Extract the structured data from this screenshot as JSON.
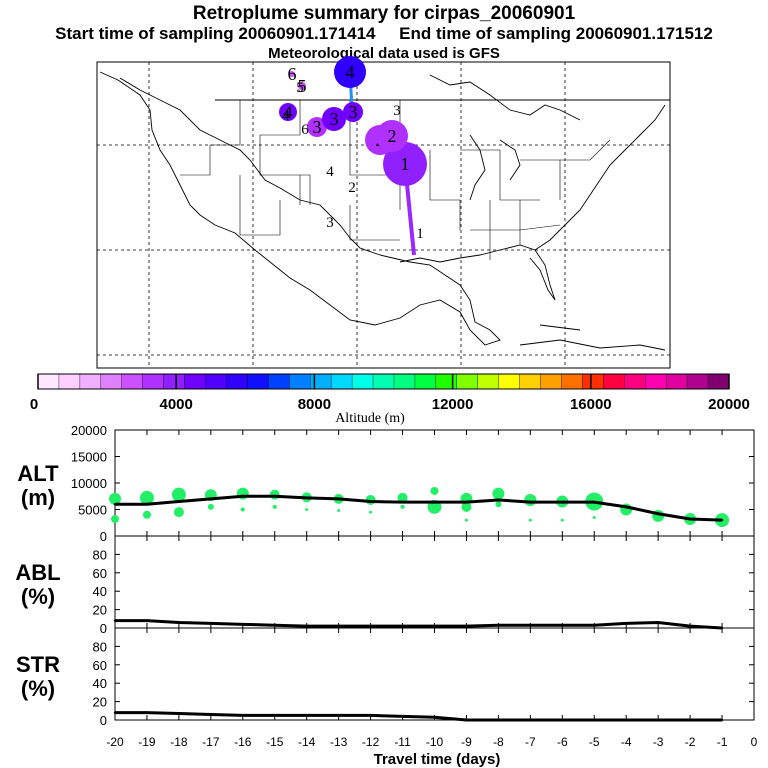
{
  "header": {
    "title": "Retroplume summary for cirpas_20060901",
    "start": "Start time of sampling 20060901.171414",
    "end": "End time of sampling 20060901.171512",
    "met": "Meteorological data used is GFS"
  },
  "map": {
    "plume_points": [
      {
        "label": "1",
        "size": 22,
        "altitude": 4200
      },
      {
        "label": "2",
        "size": 15,
        "altitude": 3600
      },
      {
        "label": "2",
        "size": 16,
        "altitude": 3300
      },
      {
        "label": "3",
        "size": 10,
        "altitude": 3300
      },
      {
        "label": "3",
        "size": 12,
        "altitude": 4400
      },
      {
        "label": "3",
        "size": 10,
        "altitude": 4700
      },
      {
        "label": "4",
        "size": 16,
        "altitude": 6000
      },
      {
        "label": "4",
        "size": 9,
        "altitude": 4500
      },
      {
        "label": "5",
        "size": 4,
        "altitude": 3000
      },
      {
        "label": "6",
        "size": 3,
        "altitude": 3000
      }
    ],
    "labels": [
      "1",
      "2",
      "3",
      "4",
      "2",
      "3",
      "4",
      "4",
      "5",
      "6"
    ]
  },
  "colorbar": {
    "title": "Altitude (m)",
    "min": 0,
    "max": 20000,
    "ticks": [
      "0",
      "4000",
      "8000",
      "12000",
      "16000",
      "20000"
    ],
    "colors": [
      "#ffe8ff",
      "#ffd0ff",
      "#f0b0ff",
      "#e080ff",
      "#cc50ff",
      "#b030ff",
      "#9020ff",
      "#7000ff",
      "#5000ff",
      "#3000ff",
      "#1010ff",
      "#0040ff",
      "#0080ff",
      "#00b0ff",
      "#00d8ff",
      "#00ffe8",
      "#00ffb0",
      "#00ff80",
      "#00ff40",
      "#20ff00",
      "#80ff00",
      "#c0ff00",
      "#ffff00",
      "#ffd000",
      "#ffa000",
      "#ff7000",
      "#ff3000",
      "#ff0040",
      "#ff0080",
      "#ff00b0",
      "#e000a0",
      "#b00090",
      "#800070"
    ]
  },
  "chart_data": {
    "type": "line",
    "x": [
      -20,
      -19,
      -18,
      -17,
      -16,
      -15,
      -14,
      -13,
      -12,
      -11,
      -10,
      -9,
      -8,
      -7,
      -6,
      -5,
      -4,
      -3,
      -2,
      -1
    ],
    "xlabel": "Travel time (days)",
    "xticks": [
      "-20",
      "-19",
      "-18",
      "-17",
      "-16",
      "-15",
      "-14",
      "-13",
      "-12",
      "-11",
      "-10",
      "-9",
      "-8",
      "-7",
      "-6",
      "-5",
      "-4",
      "-3",
      "-2",
      "-1",
      "0"
    ],
    "panels": [
      {
        "name": "ALT",
        "unit": "(m)",
        "ylim": [
          0,
          20000
        ],
        "yticks": [
          "0",
          "5000",
          "10000",
          "15000",
          "20000"
        ],
        "values": [
          6000,
          6000,
          6500,
          7000,
          7500,
          7500,
          7200,
          7000,
          6500,
          6400,
          6400,
          6400,
          6800,
          6400,
          6400,
          6400,
          5500,
          4200,
          3200,
          3000
        ],
        "scatter": [
          {
            "x": -20,
            "y": 7000,
            "r": 6
          },
          {
            "x": -20,
            "y": 3200,
            "r": 4
          },
          {
            "x": -19,
            "y": 7200,
            "r": 7
          },
          {
            "x": -19,
            "y": 4000,
            "r": 4
          },
          {
            "x": -18,
            "y": 7800,
            "r": 7
          },
          {
            "x": -18,
            "y": 4500,
            "r": 5
          },
          {
            "x": -17,
            "y": 7700,
            "r": 6
          },
          {
            "x": -17,
            "y": 5500,
            "r": 3
          },
          {
            "x": -16,
            "y": 8000,
            "r": 6
          },
          {
            "x": -16,
            "y": 5000,
            "r": 2
          },
          {
            "x": -15,
            "y": 7800,
            "r": 5
          },
          {
            "x": -15,
            "y": 5500,
            "r": 2
          },
          {
            "x": -14,
            "y": 7300,
            "r": 5
          },
          {
            "x": -14,
            "y": 5000,
            "r": 1.5
          },
          {
            "x": -13,
            "y": 7000,
            "r": 5
          },
          {
            "x": -13,
            "y": 4800,
            "r": 1.5
          },
          {
            "x": -12,
            "y": 6800,
            "r": 5
          },
          {
            "x": -12,
            "y": 4500,
            "r": 1.5
          },
          {
            "x": -11,
            "y": 7200,
            "r": 5
          },
          {
            "x": -11,
            "y": 5500,
            "r": 2
          },
          {
            "x": -10,
            "y": 8500,
            "r": 4
          },
          {
            "x": -10,
            "y": 5500,
            "r": 7
          },
          {
            "x": -9,
            "y": 7000,
            "r": 6
          },
          {
            "x": -9,
            "y": 5500,
            "r": 5
          },
          {
            "x": -9,
            "y": 3000,
            "r": 1.5
          },
          {
            "x": -8,
            "y": 8000,
            "r": 6
          },
          {
            "x": -8,
            "y": 6000,
            "r": 3
          },
          {
            "x": -7,
            "y": 6800,
            "r": 6
          },
          {
            "x": -7,
            "y": 3000,
            "r": 1.5
          },
          {
            "x": -6,
            "y": 6500,
            "r": 6
          },
          {
            "x": -6,
            "y": 3000,
            "r": 1.5
          },
          {
            "x": -5,
            "y": 6500,
            "r": 9
          },
          {
            "x": -5,
            "y": 3500,
            "r": 1.5
          },
          {
            "x": -4,
            "y": 5000,
            "r": 6
          },
          {
            "x": -3,
            "y": 3800,
            "r": 6
          },
          {
            "x": -2,
            "y": 3200,
            "r": 6
          },
          {
            "x": -1,
            "y": 3000,
            "r": 7
          }
        ]
      },
      {
        "name": "ABL",
        "unit": "(%)",
        "ylim": [
          0,
          100
        ],
        "yticks": [
          "0",
          "20",
          "40",
          "60",
          "80"
        ],
        "values": [
          8,
          8,
          6,
          5,
          4,
          3,
          2,
          2,
          2,
          2,
          2,
          2,
          3,
          3,
          3,
          3,
          5,
          6,
          2,
          0
        ]
      },
      {
        "name": "STR",
        "unit": "(%)",
        "ylim": [
          0,
          100
        ],
        "yticks": [
          "0",
          "20",
          "40",
          "60",
          "80"
        ],
        "values": [
          8,
          8,
          7,
          6,
          5,
          5,
          5,
          5,
          5,
          4,
          3,
          0,
          0,
          0,
          0,
          0,
          0,
          0,
          0,
          0
        ]
      }
    ]
  }
}
